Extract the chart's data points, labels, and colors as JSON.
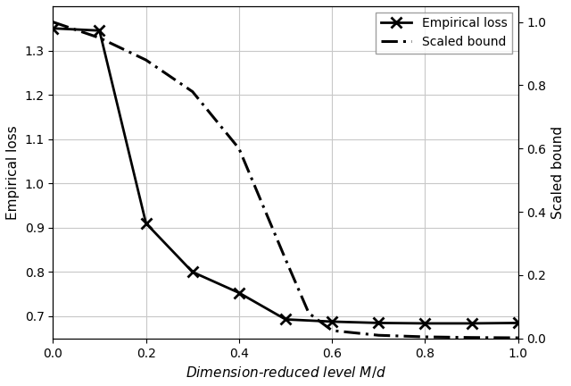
{
  "empirical_loss_x": [
    0.0,
    0.1,
    0.2,
    0.3,
    0.4,
    0.5,
    0.6,
    0.7,
    0.8,
    0.9,
    1.0
  ],
  "empirical_loss_y": [
    1.35,
    1.345,
    0.91,
    0.8,
    0.753,
    0.693,
    0.688,
    0.685,
    0.684,
    0.684,
    0.685
  ],
  "scaled_bound_x": [
    0.0,
    0.1,
    0.2,
    0.3,
    0.4,
    0.5,
    0.55,
    0.6,
    0.7,
    0.8,
    0.9,
    1.0
  ],
  "scaled_bound_y": [
    1.0,
    0.95,
    0.88,
    0.78,
    0.6,
    0.25,
    0.08,
    0.025,
    0.01,
    0.005,
    0.003,
    0.002
  ],
  "xlabel": "Dimension-reduced level $M/d$",
  "ylabel_left": "Empirical loss",
  "ylabel_right": "Scaled bound",
  "xlim": [
    0.0,
    1.0
  ],
  "ylim_left": [
    0.65,
    1.4
  ],
  "ylim_right": [
    0.0,
    1.05
  ],
  "yticks_left": [
    0.7,
    0.8,
    0.9,
    1.0,
    1.1,
    1.2,
    1.3
  ],
  "yticks_right": [
    0.0,
    0.2,
    0.4,
    0.6,
    0.8,
    1.0
  ],
  "xticks": [
    0.0,
    0.2,
    0.4,
    0.6,
    0.8,
    1.0
  ],
  "legend_empirical": "Empirical loss",
  "legend_bound": "Scaled bound",
  "line_color": "#000000",
  "background_color": "#ffffff",
  "grid_color": "#c8c8c8"
}
